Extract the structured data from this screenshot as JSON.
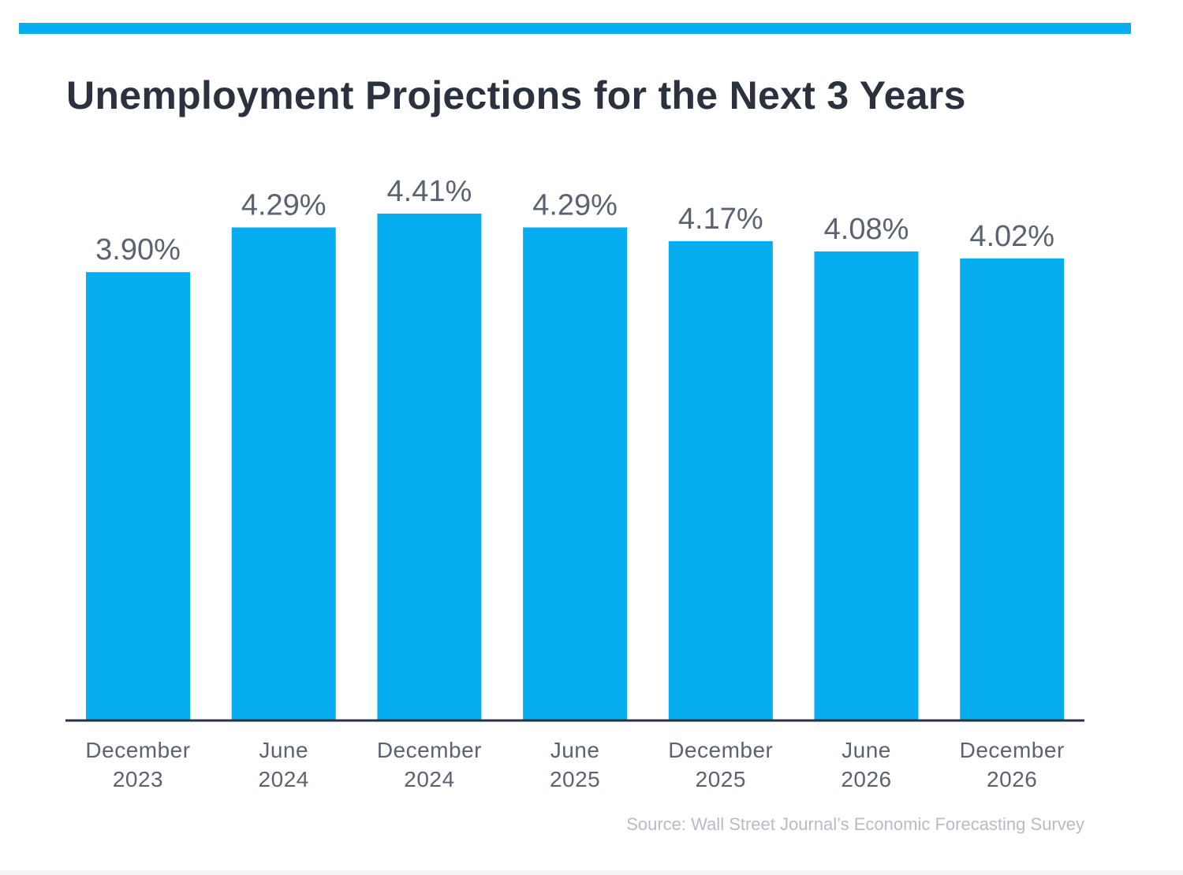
{
  "colors": {
    "accent": "#06aeef",
    "title": "#2b323d",
    "label": "#5b6270",
    "axis": "#2b323d",
    "source": "#b7bcc4"
  },
  "header": {
    "title": "Unemployment Projections for the Next 3 Years"
  },
  "chart_data": {
    "type": "bar",
    "title": "Unemployment Projections for the Next 3 Years",
    "xlabel": "",
    "ylabel": "",
    "categories": [
      [
        "December",
        "2023"
      ],
      [
        "June",
        "2024"
      ],
      [
        "December",
        "2024"
      ],
      [
        "June",
        "2025"
      ],
      [
        "December",
        "2025"
      ],
      [
        "June",
        "2026"
      ],
      [
        "December",
        "2026"
      ]
    ],
    "values": [
      3.9,
      4.29,
      4.41,
      4.29,
      4.17,
      4.08,
      4.02
    ],
    "value_labels": [
      "3.90%",
      "4.29%",
      "4.41%",
      "4.29%",
      "4.17%",
      "4.08%",
      "4.02%"
    ],
    "ylim": [
      0,
      4.41
    ],
    "grid": false,
    "legend": "none"
  },
  "footer": {
    "source": "Source: Wall Street Journal’s Economic Forecasting Survey"
  }
}
